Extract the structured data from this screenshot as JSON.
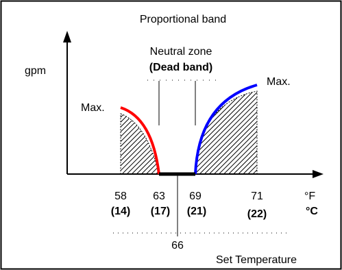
{
  "title": "Proportional band",
  "neutral_zone": {
    "line1": "Neutral zone",
    "line2": "(Dead band)"
  },
  "y_label": "gpm",
  "max_left_label": "Max.",
  "max_right_label": "Max.",
  "ticks": [
    {
      "f": "58",
      "c": "(14)"
    },
    {
      "f": "63",
      "c": "(17)"
    },
    {
      "f": "69",
      "c": "(21)"
    },
    {
      "f": "71",
      "c": "(22)"
    }
  ],
  "unit_f": "°F",
  "unit_c": "°C",
  "setpoint": "66",
  "set_temp_label": "Set Temperature",
  "colors": {
    "heating_curve": "#ff0000",
    "cooling_curve": "#0000ff",
    "dead_band": "#000000",
    "hatch": "#000000"
  }
}
